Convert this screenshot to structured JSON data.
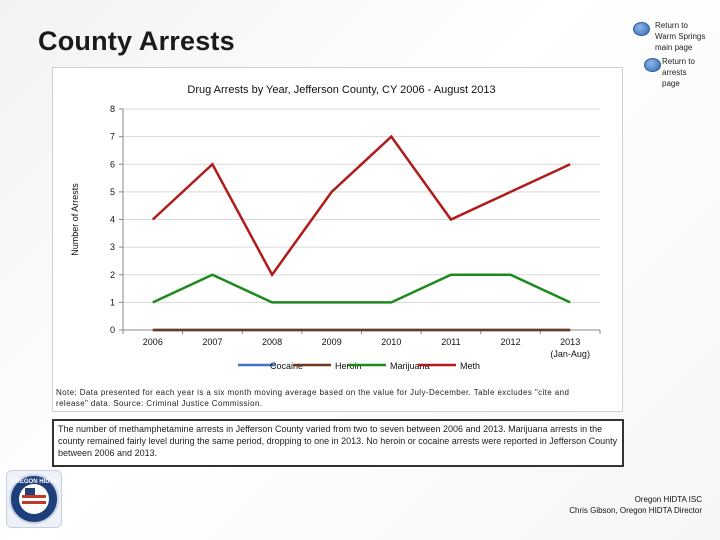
{
  "page": {
    "title": "County Arrests",
    "nav": [
      {
        "label": "Return to\nWarm Springs\nmain page",
        "icon": "circle-button-icon"
      },
      {
        "label": "Return to\narrests\npage",
        "icon": "circle-button-icon"
      }
    ],
    "note": "Note: Data presented for each year is a six month moving average based on the value for July-December. Table excludes \"cite and release\" data. Source: Criminal Justice Commission.",
    "summary": "The number of methamphetamine arrests in Jefferson County varied from two to seven between 2006 and 2013. Marijuana arrests in the county remained fairly level during the same period, dropping to one in 2013. No heroin or cocaine arrests were reported in Jefferson County between 2006 and 2013.",
    "logo_text": "OREGON HIDTA",
    "credits": [
      "Oregon HIDTA ISC",
      "Chris Gibson, Oregon HIDTA Director"
    ]
  },
  "chart_data": {
    "type": "line",
    "title": "Drug Arrests by Year, Jefferson County, CY 2006 - August 2013",
    "xlabel": "",
    "ylabel": "Number of Arrests",
    "categories": [
      "2006",
      "2007",
      "2008",
      "2009",
      "2010",
      "2011",
      "2012",
      "2013\n(Jan-Aug)"
    ],
    "ylim": [
      0,
      8
    ],
    "yticks": [
      0,
      1,
      2,
      3,
      4,
      5,
      6,
      7,
      8
    ],
    "grid": true,
    "legend": "bottom",
    "series": [
      {
        "name": "Cocaine",
        "color": "#4472c4",
        "values": [
          0,
          0,
          0,
          0,
          0,
          0,
          0,
          0
        ]
      },
      {
        "name": "Heroin",
        "color": "#6b3a1e",
        "values": [
          0,
          0,
          0,
          0,
          0,
          0,
          0,
          0
        ]
      },
      {
        "name": "Marijuana",
        "color": "#1e8a1e",
        "values": [
          1,
          2,
          1,
          1,
          1,
          2,
          2,
          1
        ]
      },
      {
        "name": "Meth",
        "color": "#b01c1c",
        "values": [
          4,
          6,
          2,
          5,
          7,
          4,
          5,
          6
        ]
      }
    ]
  }
}
